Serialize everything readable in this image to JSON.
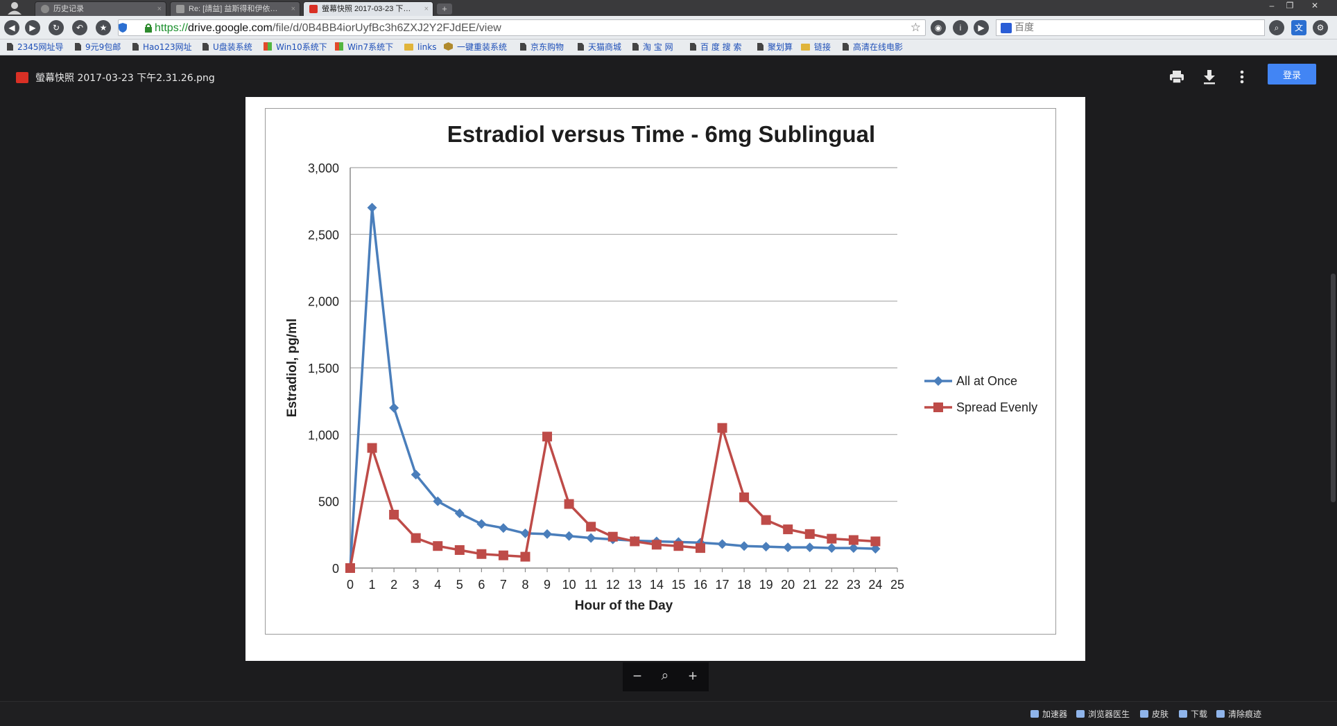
{
  "browser": {
    "tabs": [
      {
        "label": "历史记录",
        "active": false
      },
      {
        "label": "Re: [請益] 益斯得和伊依…",
        "active": false
      },
      {
        "label": "螢幕快照 2017-03-23 下…",
        "active": true
      }
    ],
    "url": {
      "scheme": "https://",
      "host": "drive.google.com",
      "path": "/file/d/0B4BB4iorUyfBc3h6ZXJ2Y2FJdEE/view"
    },
    "search_placeholder": "百度",
    "bookmarks": [
      {
        "label": "2345网址导",
        "icon": "page-icon"
      },
      {
        "label": "9元9包邮",
        "icon": "page-icon"
      },
      {
        "label": "Hao123网址",
        "icon": "page-icon"
      },
      {
        "label": "U盘装系统",
        "icon": "page-icon"
      },
      {
        "label": "Win10系统下",
        "icon": "windows-icon"
      },
      {
        "label": "Win7系统下",
        "icon": "windows-icon"
      },
      {
        "label": "links",
        "icon": "folder-icon"
      },
      {
        "label": "一键重装系统",
        "icon": "package-icon"
      },
      {
        "label": "京东购物",
        "icon": "page-icon"
      },
      {
        "label": "天猫商城",
        "icon": "page-icon"
      },
      {
        "label": "淘 宝 网",
        "icon": "page-icon"
      },
      {
        "label": "百 度 搜 索",
        "icon": "page-icon"
      },
      {
        "label": "聚划算",
        "icon": "page-icon"
      },
      {
        "label": "链接",
        "icon": "folder-icon"
      },
      {
        "label": "高清在线电影",
        "icon": "page-icon"
      }
    ]
  },
  "viewer": {
    "file_name": "螢幕快照 2017-03-23 下午2.31.26.png",
    "login_label": "登录",
    "actions": [
      "print-icon",
      "download-icon",
      "more-vert-icon"
    ],
    "zoom": {
      "minus": "−",
      "plus": "+"
    }
  },
  "chart_data": {
    "type": "line",
    "title": "Estradiol versus Time - 6mg Sublingual",
    "xlabel": "Hour of the Day",
    "ylabel": "Estradiol, pg/ml",
    "xlim": [
      0,
      25
    ],
    "ylim": [
      0,
      3000
    ],
    "yticks": [
      0,
      500,
      1000,
      1500,
      2000,
      2500,
      3000
    ],
    "ytick_labels": [
      "0",
      "500",
      "1,000",
      "1,500",
      "2,000",
      "2,500",
      "3,000"
    ],
    "xticks": [
      0,
      1,
      2,
      3,
      4,
      5,
      6,
      7,
      8,
      9,
      10,
      11,
      12,
      13,
      14,
      15,
      16,
      17,
      18,
      19,
      20,
      21,
      22,
      23,
      24,
      25
    ],
    "grid": "horizontal",
    "legend_position": "right",
    "series": [
      {
        "name": "All at Once",
        "color": "#4a7ebb",
        "marker": "diamond",
        "x": [
          0,
          1,
          2,
          3,
          4,
          5,
          6,
          7,
          8,
          9,
          10,
          11,
          12,
          13,
          14,
          15,
          16,
          17,
          18,
          19,
          20,
          21,
          22,
          23,
          24
        ],
        "y": [
          0,
          2700,
          1200,
          700,
          500,
          410,
          330,
          300,
          260,
          255,
          240,
          225,
          215,
          205,
          200,
          195,
          190,
          180,
          165,
          160,
          155,
          155,
          150,
          150,
          145
        ]
      },
      {
        "name": "Spread Evenly",
        "color": "#be4b48",
        "marker": "square",
        "x": [
          0,
          1,
          2,
          3,
          4,
          5,
          6,
          7,
          8,
          9,
          10,
          11,
          12,
          13,
          14,
          15,
          16,
          17,
          18,
          19,
          20,
          21,
          22,
          23,
          24
        ],
        "y": [
          0,
          900,
          400,
          225,
          165,
          135,
          105,
          95,
          85,
          985,
          480,
          310,
          235,
          200,
          175,
          165,
          150,
          1050,
          530,
          360,
          290,
          255,
          220,
          210,
          200
        ]
      }
    ]
  },
  "status_bar": {
    "items": [
      "加速器",
      "浏览器医生",
      "皮肤",
      "下载",
      "清除痕迹"
    ]
  }
}
